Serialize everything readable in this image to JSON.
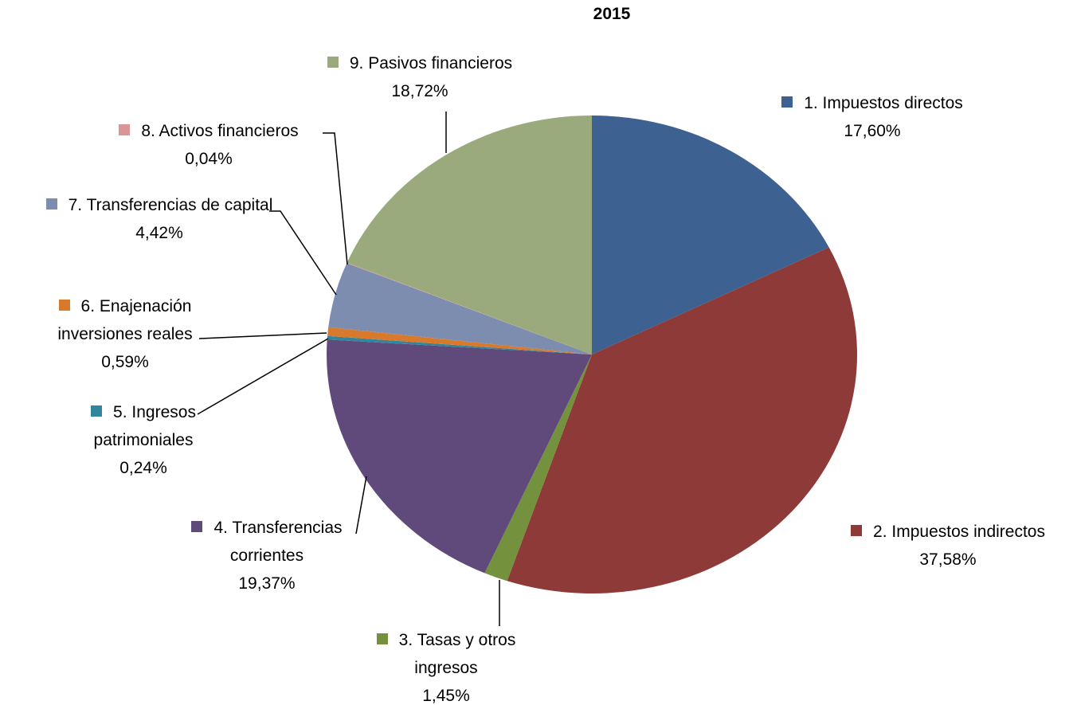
{
  "chart_data": {
    "type": "pie",
    "title": "2015",
    "categories": [
      "1. Impuestos directos",
      "2. Impuestos indirectos",
      "3. Tasas y otros ingresos",
      "4. Transferencias corrientes",
      "5. Ingresos patrimoniales",
      "6. Enajenación inversiones reales",
      "7. Transferencias de capital",
      "8. Activos financieros",
      "9. Pasivos financieros"
    ],
    "values": [
      17.6,
      37.58,
      1.45,
      19.37,
      0.24,
      0.59,
      4.42,
      0.04,
      18.72
    ],
    "value_labels": [
      "17,60%",
      "37,58%",
      "1,45%",
      "19,37%",
      "0,24%",
      "0,59%",
      "4,42%",
      "0,04%",
      "18,72%"
    ],
    "colors": [
      "#3d6190",
      "#8e3a38",
      "#74913d",
      "#604a7b",
      "#31859c",
      "#d9792b",
      "#7d8daf",
      "#d99694",
      "#9baa7c"
    ]
  }
}
